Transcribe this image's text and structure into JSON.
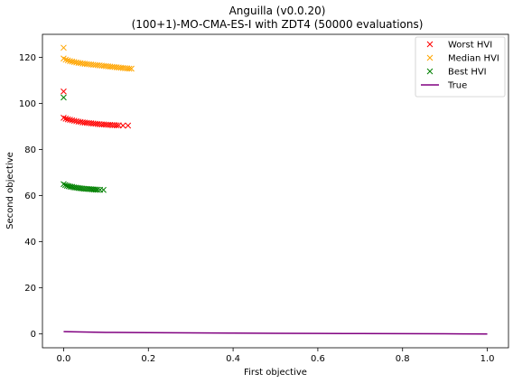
{
  "chart_data": {
    "type": "scatter",
    "title": "Anguilla (v0.0.20)",
    "subtitle": "(100+1)-MO-CMA-ES-I with ZDT4 (50000 evaluations)",
    "xlabel": "First objective",
    "ylabel": "Second objective",
    "xlim": [
      -0.05,
      1.05
    ],
    "ylim": [
      -6,
      130
    ],
    "xticks": [
      0.0,
      0.2,
      0.4,
      0.6,
      0.8,
      1.0
    ],
    "xtick_labels": [
      "0.0",
      "0.2",
      "0.4",
      "0.6",
      "0.8",
      "1.0"
    ],
    "yticks": [
      0,
      20,
      40,
      60,
      80,
      100,
      120
    ],
    "ytick_labels": [
      "0",
      "20",
      "40",
      "60",
      "80",
      "100",
      "120"
    ],
    "grid": false,
    "legend_position": "top-right",
    "series": [
      {
        "name": "Worst HVI",
        "marker": "x",
        "color": "#ff0000",
        "points": [
          [
            0.0,
            105.2
          ],
          [
            0.0,
            93.8
          ],
          [
            0.005,
            93.4
          ],
          [
            0.01,
            93.1
          ],
          [
            0.015,
            92.9
          ],
          [
            0.02,
            92.7
          ],
          [
            0.025,
            92.5
          ],
          [
            0.03,
            92.3
          ],
          [
            0.035,
            92.1
          ],
          [
            0.04,
            92.0
          ],
          [
            0.045,
            91.8
          ],
          [
            0.05,
            91.7
          ],
          [
            0.055,
            91.6
          ],
          [
            0.06,
            91.5
          ],
          [
            0.065,
            91.4
          ],
          [
            0.07,
            91.3
          ],
          [
            0.075,
            91.2
          ],
          [
            0.08,
            91.1
          ],
          [
            0.085,
            91.0
          ],
          [
            0.09,
            90.9
          ],
          [
            0.095,
            90.9
          ],
          [
            0.1,
            90.8
          ],
          [
            0.105,
            90.7
          ],
          [
            0.11,
            90.7
          ],
          [
            0.115,
            90.6
          ],
          [
            0.12,
            90.6
          ],
          [
            0.125,
            90.5
          ],
          [
            0.13,
            90.5
          ],
          [
            0.14,
            90.4
          ],
          [
            0.152,
            90.4
          ]
        ]
      },
      {
        "name": "Median HVI",
        "marker": "x",
        "color": "#ffa500",
        "points": [
          [
            0.0,
            124.2
          ],
          [
            0.0,
            119.5
          ],
          [
            0.005,
            119.0
          ],
          [
            0.01,
            118.7
          ],
          [
            0.015,
            118.4
          ],
          [
            0.02,
            118.2
          ],
          [
            0.025,
            118.0
          ],
          [
            0.03,
            117.8
          ],
          [
            0.035,
            117.6
          ],
          [
            0.04,
            117.5
          ],
          [
            0.045,
            117.3
          ],
          [
            0.05,
            117.2
          ],
          [
            0.055,
            117.1
          ],
          [
            0.06,
            117.0
          ],
          [
            0.065,
            116.9
          ],
          [
            0.07,
            116.8
          ],
          [
            0.075,
            116.7
          ],
          [
            0.08,
            116.6
          ],
          [
            0.085,
            116.5
          ],
          [
            0.09,
            116.4
          ],
          [
            0.095,
            116.3
          ],
          [
            0.1,
            116.2
          ],
          [
            0.105,
            116.1
          ],
          [
            0.11,
            116.0
          ],
          [
            0.115,
            115.9
          ],
          [
            0.12,
            115.8
          ],
          [
            0.125,
            115.7
          ],
          [
            0.13,
            115.6
          ],
          [
            0.135,
            115.5
          ],
          [
            0.14,
            115.4
          ],
          [
            0.145,
            115.3
          ],
          [
            0.15,
            115.2
          ],
          [
            0.155,
            115.1
          ],
          [
            0.16,
            115.1
          ]
        ]
      },
      {
        "name": "Best HVI",
        "marker": "x",
        "color": "#008000",
        "points": [
          [
            0.0,
            102.6
          ],
          [
            0.0,
            65.0
          ],
          [
            0.004,
            64.6
          ],
          [
            0.008,
            64.3
          ],
          [
            0.012,
            64.1
          ],
          [
            0.016,
            63.9
          ],
          [
            0.02,
            63.8
          ],
          [
            0.024,
            63.6
          ],
          [
            0.028,
            63.5
          ],
          [
            0.032,
            63.4
          ],
          [
            0.036,
            63.3
          ],
          [
            0.04,
            63.2
          ],
          [
            0.044,
            63.1
          ],
          [
            0.048,
            63.0
          ],
          [
            0.052,
            62.95
          ],
          [
            0.056,
            62.9
          ],
          [
            0.06,
            62.85
          ],
          [
            0.064,
            62.8
          ],
          [
            0.068,
            62.75
          ],
          [
            0.072,
            62.7
          ],
          [
            0.076,
            62.65
          ],
          [
            0.08,
            62.6
          ],
          [
            0.086,
            62.55
          ],
          [
            0.094,
            62.5
          ]
        ]
      },
      {
        "name": "True",
        "type": "line",
        "color": "#800080",
        "points": [
          [
            0.0,
            1.0
          ],
          [
            0.1,
            0.68
          ],
          [
            0.2,
            0.55
          ],
          [
            0.3,
            0.45
          ],
          [
            0.4,
            0.37
          ],
          [
            0.5,
            0.29
          ],
          [
            0.6,
            0.23
          ],
          [
            0.7,
            0.16
          ],
          [
            0.8,
            0.11
          ],
          [
            0.9,
            0.05
          ],
          [
            1.0,
            0.0
          ]
        ]
      }
    ]
  }
}
